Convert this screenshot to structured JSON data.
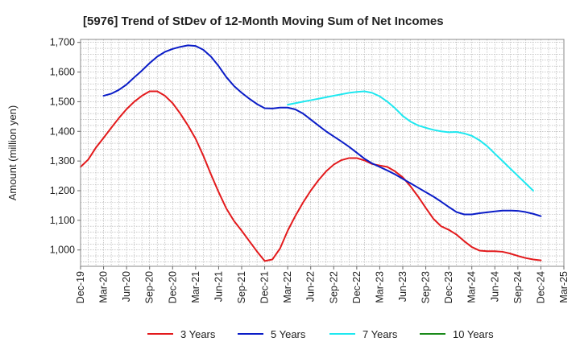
{
  "chart_data": {
    "type": "line",
    "title": "[5976]  Trend of StDev of 12-Month Moving Sum of Net Incomes",
    "ylabel": "Amount (million yen)",
    "xlabel": "",
    "ylim": [
      945,
      1710
    ],
    "yticks": [
      1000,
      1100,
      1200,
      1300,
      1400,
      1500,
      1600,
      1700
    ],
    "ytick_labels": [
      "1,000",
      "1,100",
      "1,200",
      "1,300",
      "1,400",
      "1,500",
      "1,600",
      "1,700"
    ],
    "x_start": "Dec-19",
    "x_months": 63,
    "xtick_labels": [
      "Dec-19",
      "Mar-20",
      "Jun-20",
      "Sep-20",
      "Dec-20",
      "Mar-21",
      "Jun-21",
      "Sep-21",
      "Dec-21",
      "Mar-22",
      "Jun-22",
      "Sep-22",
      "Dec-22",
      "Mar-23",
      "Jun-23",
      "Sep-23",
      "Dec-23",
      "Mar-24",
      "Jun-24",
      "Sep-24",
      "Dec-24",
      "Mar-25"
    ],
    "grid": true,
    "legend_position": "bottom",
    "series": [
      {
        "name": "3 Years",
        "color": "#e31a1c",
        "points": [
          [
            0,
            1280
          ],
          [
            1,
            1305
          ],
          [
            2,
            1345
          ],
          [
            3,
            1378
          ],
          [
            4,
            1412
          ],
          [
            5,
            1445
          ],
          [
            6,
            1475
          ],
          [
            7,
            1500
          ],
          [
            8,
            1520
          ],
          [
            9,
            1535
          ],
          [
            10,
            1535
          ],
          [
            11,
            1520
          ],
          [
            12,
            1495
          ],
          [
            13,
            1460
          ],
          [
            14,
            1420
          ],
          [
            15,
            1375
          ],
          [
            16,
            1318
          ],
          [
            17,
            1255
          ],
          [
            18,
            1195
          ],
          [
            19,
            1140
          ],
          [
            20,
            1098
          ],
          [
            21,
            1065
          ],
          [
            22,
            1030
          ],
          [
            23,
            995
          ],
          [
            24,
            963
          ],
          [
            25,
            968
          ],
          [
            26,
            1005
          ],
          [
            27,
            1065
          ],
          [
            28,
            1115
          ],
          [
            29,
            1160
          ],
          [
            30,
            1200
          ],
          [
            31,
            1235
          ],
          [
            32,
            1265
          ],
          [
            33,
            1288
          ],
          [
            34,
            1303
          ],
          [
            35,
            1310
          ],
          [
            36,
            1310
          ],
          [
            37,
            1302
          ],
          [
            38,
            1290
          ],
          [
            39,
            1285
          ],
          [
            40,
            1280
          ],
          [
            41,
            1265
          ],
          [
            42,
            1245
          ],
          [
            43,
            1215
          ],
          [
            44,
            1180
          ],
          [
            45,
            1142
          ],
          [
            46,
            1105
          ],
          [
            47,
            1080
          ],
          [
            48,
            1068
          ],
          [
            49,
            1052
          ],
          [
            50,
            1030
          ],
          [
            51,
            1010
          ],
          [
            52,
            998
          ],
          [
            53,
            996
          ],
          [
            54,
            996
          ],
          [
            55,
            994
          ],
          [
            56,
            988
          ],
          [
            57,
            980
          ],
          [
            58,
            973
          ],
          [
            59,
            968
          ],
          [
            60,
            965
          ]
        ]
      },
      {
        "name": "5 Years",
        "color": "#0a1cc7",
        "points": [
          [
            3,
            1520
          ],
          [
            4,
            1527
          ],
          [
            5,
            1540
          ],
          [
            6,
            1558
          ],
          [
            7,
            1582
          ],
          [
            8,
            1605
          ],
          [
            9,
            1630
          ],
          [
            10,
            1652
          ],
          [
            11,
            1668
          ],
          [
            12,
            1678
          ],
          [
            13,
            1685
          ],
          [
            14,
            1690
          ],
          [
            15,
            1688
          ],
          [
            16,
            1675
          ],
          [
            17,
            1652
          ],
          [
            18,
            1620
          ],
          [
            19,
            1583
          ],
          [
            20,
            1553
          ],
          [
            21,
            1530
          ],
          [
            22,
            1510
          ],
          [
            23,
            1492
          ],
          [
            24,
            1478
          ],
          [
            25,
            1477
          ],
          [
            26,
            1480
          ],
          [
            27,
            1480
          ],
          [
            28,
            1474
          ],
          [
            29,
            1460
          ],
          [
            30,
            1440
          ],
          [
            31,
            1420
          ],
          [
            32,
            1400
          ],
          [
            33,
            1383
          ],
          [
            34,
            1366
          ],
          [
            35,
            1348
          ],
          [
            36,
            1328
          ],
          [
            37,
            1308
          ],
          [
            38,
            1292
          ],
          [
            39,
            1280
          ],
          [
            40,
            1268
          ],
          [
            41,
            1255
          ],
          [
            42,
            1240
          ],
          [
            43,
            1225
          ],
          [
            44,
            1210
          ],
          [
            45,
            1195
          ],
          [
            46,
            1180
          ],
          [
            47,
            1163
          ],
          [
            48,
            1145
          ],
          [
            49,
            1128
          ],
          [
            50,
            1120
          ],
          [
            51,
            1120
          ],
          [
            52,
            1124
          ],
          [
            53,
            1127
          ],
          [
            54,
            1130
          ],
          [
            55,
            1133
          ],
          [
            56,
            1133
          ],
          [
            57,
            1132
          ],
          [
            58,
            1128
          ],
          [
            59,
            1122
          ],
          [
            60,
            1114
          ]
        ]
      },
      {
        "name": "7 Years",
        "color": "#1ee8f0",
        "points": [
          [
            27,
            1490
          ],
          [
            28,
            1495
          ],
          [
            29,
            1500
          ],
          [
            30,
            1505
          ],
          [
            31,
            1510
          ],
          [
            32,
            1515
          ],
          [
            33,
            1520
          ],
          [
            34,
            1525
          ],
          [
            35,
            1530
          ],
          [
            36,
            1533
          ],
          [
            37,
            1535
          ],
          [
            38,
            1530
          ],
          [
            39,
            1518
          ],
          [
            40,
            1500
          ],
          [
            41,
            1478
          ],
          [
            42,
            1452
          ],
          [
            43,
            1433
          ],
          [
            44,
            1420
          ],
          [
            45,
            1412
          ],
          [
            46,
            1405
          ],
          [
            47,
            1400
          ],
          [
            48,
            1397
          ],
          [
            49,
            1398
          ],
          [
            50,
            1393
          ],
          [
            51,
            1385
          ],
          [
            52,
            1370
          ],
          [
            53,
            1350
          ],
          [
            54,
            1325
          ],
          [
            55,
            1300
          ],
          [
            56,
            1275
          ],
          [
            57,
            1250
          ],
          [
            58,
            1225
          ],
          [
            59,
            1200
          ]
        ]
      },
      {
        "name": "10 Years",
        "color": "#1a8a1a",
        "points": []
      }
    ]
  }
}
